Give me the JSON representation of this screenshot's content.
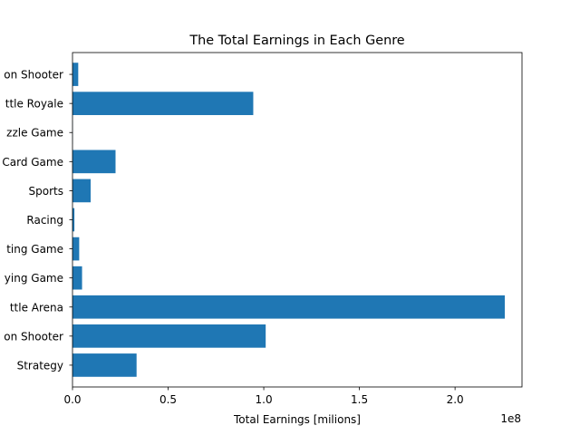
{
  "chart_data": {
    "type": "bar",
    "orientation": "horizontal",
    "title": "The Total Earnings in Each Genre",
    "xlabel": "Total Earnings [milions]",
    "ylabel": "",
    "x_offset_text": "1e8",
    "xlim": [
      0,
      235000000
    ],
    "xticks": [
      {
        "value": 0,
        "label": "0.0"
      },
      {
        "value": 50000000,
        "label": "0.5"
      },
      {
        "value": 100000000,
        "label": "1.0"
      },
      {
        "value": 150000000,
        "label": "1.5"
      },
      {
        "value": 200000000,
        "label": "2.0"
      }
    ],
    "categories_visible": [
      "Strategy",
      "on Shooter",
      "ttle Arena",
      "ying Game",
      "ting Game",
      "Racing",
      "Sports",
      "Card Game",
      "zzle Game",
      "ttle Royale",
      "on Shooter"
    ],
    "values": [
      33500000,
      101000000,
      226000000,
      5000000,
      3500000,
      1000000,
      9500000,
      22500000,
      100000,
      94500000,
      3000000
    ],
    "grid": false,
    "colors": {
      "bar": "#1f77b4",
      "axis": "#000000",
      "background": "#ffffff"
    }
  }
}
